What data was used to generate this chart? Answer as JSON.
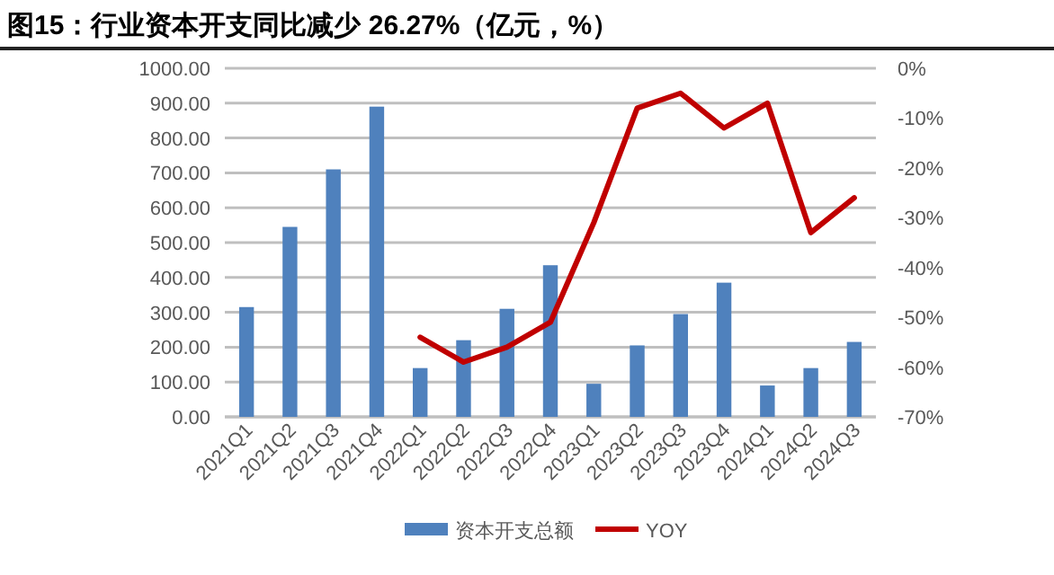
{
  "chart_data": {
    "type": "bar",
    "title": "图15：行业资本开支同比减少 26.27%（亿元，%）",
    "categories": [
      "2021Q1",
      "2021Q2",
      "2021Q3",
      "2021Q4",
      "2022Q1",
      "2022Q2",
      "2022Q3",
      "2022Q4",
      "2023Q1",
      "2023Q2",
      "2023Q3",
      "2023Q4",
      "2024Q1",
      "2024Q2",
      "2024Q3"
    ],
    "series": [
      {
        "name": "资本开支总额",
        "color": "#4f81bd",
        "values": [
          315,
          545,
          710,
          890,
          140,
          220,
          310,
          435,
          95,
          205,
          295,
          385,
          90,
          140,
          215
        ]
      },
      {
        "name": "YOY",
        "type": "line",
        "axis": "y2",
        "color": "#c00000",
        "values": [
          null,
          null,
          null,
          null,
          -54,
          -59,
          -56,
          -51,
          -31,
          -8,
          -5,
          -12,
          -7,
          -33,
          -26
        ]
      }
    ],
    "ylim": [
      0,
      1000
    ],
    "yticks": [
      {
        "value": 0,
        "label": "0.00"
      },
      {
        "value": 100,
        "label": "100.00"
      },
      {
        "value": 200,
        "label": "200.00"
      },
      {
        "value": 300,
        "label": "300.00"
      },
      {
        "value": 400,
        "label": "400.00"
      },
      {
        "value": 500,
        "label": "500.00"
      },
      {
        "value": 600,
        "label": "600.00"
      },
      {
        "value": 700,
        "label": "700.00"
      },
      {
        "value": 800,
        "label": "800.00"
      },
      {
        "value": 900,
        "label": "900.00"
      },
      {
        "value": 1000,
        "label": "1000.00"
      }
    ],
    "y2lim": [
      -70,
      0
    ],
    "y2ticks": [
      {
        "value": -70,
        "label": "-70%"
      },
      {
        "value": -60,
        "label": "-60%"
      },
      {
        "value": -50,
        "label": "-50%"
      },
      {
        "value": -40,
        "label": "-40%"
      },
      {
        "value": -30,
        "label": "-30%"
      },
      {
        "value": -20,
        "label": "-20%"
      },
      {
        "value": -10,
        "label": "-10%"
      },
      {
        "value": 0,
        "label": "0%"
      }
    ],
    "grid": "y",
    "legend": "bottom",
    "marker": "none",
    "line_style": "solid"
  }
}
